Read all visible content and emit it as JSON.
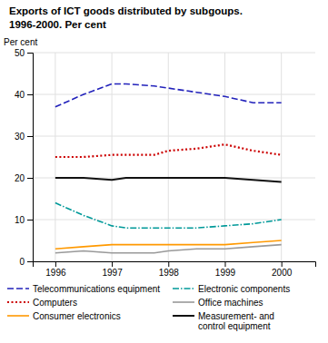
{
  "chart_data": {
    "type": "line",
    "title": "Exports of ICT goods distributed by subgoups.",
    "subtitle": "1996-2000. Per cent",
    "ylabel": "Per cent",
    "x": [
      1996,
      1996.5,
      1997,
      1997.25,
      1997.75,
      1998,
      1998.5,
      1999,
      1999.5,
      2000
    ],
    "xlim": [
      1995.6,
      2000.6
    ],
    "xticks": [
      1996,
      1997,
      1998,
      1999,
      2000
    ],
    "ylim": [
      0,
      50
    ],
    "yticks": [
      0,
      10,
      20,
      30,
      40,
      50
    ],
    "grid": true,
    "legend": "bottom",
    "series": [
      {
        "name": "Telecommunications equipment",
        "color": "#2222bb",
        "line_style": "dashed",
        "values": [
          37,
          40,
          42.5,
          42.5,
          42,
          41.5,
          40.5,
          39.5,
          38,
          38
        ]
      },
      {
        "name": "Computers",
        "color": "#cc0000",
        "line_style": "dotted",
        "values": [
          25,
          25,
          25.5,
          25.5,
          25.5,
          26.5,
          27,
          28,
          26.5,
          25.5
        ]
      },
      {
        "name": "Consumer electronics",
        "color": "#ff9900",
        "line_style": "solid",
        "values": [
          3,
          3.5,
          4,
          4,
          4,
          4,
          4,
          4,
          4.5,
          5
        ]
      },
      {
        "name": "Electronic components",
        "color": "#009999",
        "line_style": "dashdot",
        "values": [
          14,
          11,
          8.5,
          8,
          8,
          8,
          8,
          8.5,
          9,
          10
        ]
      },
      {
        "name": "Office machines",
        "color": "#999999",
        "line_style": "solid",
        "values": [
          2,
          2.5,
          2,
          2,
          2,
          2.5,
          3,
          3,
          3.5,
          4
        ]
      },
      {
        "name": "Measurement- and\ncontrol equipment",
        "color": "#111111",
        "line_style": "solid",
        "values": [
          20,
          20,
          19.5,
          20,
          20,
          20,
          20,
          20,
          19.5,
          19
        ]
      }
    ]
  }
}
